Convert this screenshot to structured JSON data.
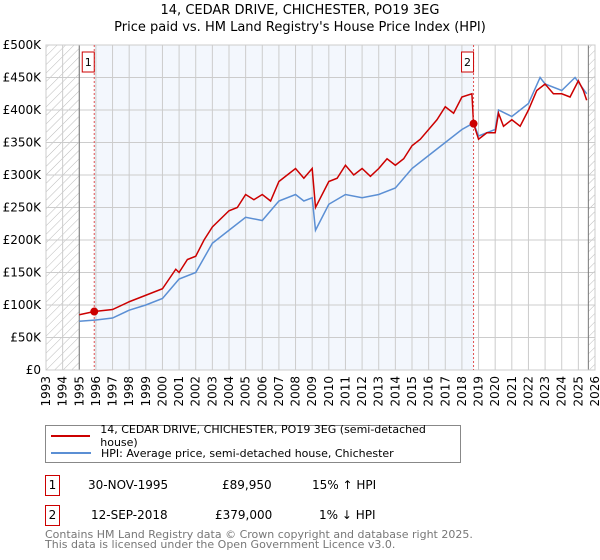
{
  "title": "14, CEDAR DRIVE, CHICHESTER, PO19 3EG",
  "subtitle": "Price paid vs. HM Land Registry's House Price Index (HPI)",
  "chart_data": {
    "type": "line",
    "title": "14, CEDAR DRIVE, CHICHESTER, PO19 3EG",
    "xlim": [
      1993,
      2026
    ],
    "ylim": [
      0,
      500000
    ],
    "yticks": [
      "£0",
      "£50K",
      "£100K",
      "£150K",
      "£200K",
      "£250K",
      "£300K",
      "£350K",
      "£400K",
      "£450K",
      "£500K"
    ],
    "xticks": [
      "1993",
      "1994",
      "1995",
      "1996",
      "1997",
      "1998",
      "1999",
      "2000",
      "2001",
      "2002",
      "2003",
      "2004",
      "2005",
      "2006",
      "2007",
      "2008",
      "2009",
      "2010",
      "2011",
      "2012",
      "2013",
      "2014",
      "2015",
      "2016",
      "2017",
      "2018",
      "2019",
      "2020",
      "2021",
      "2022",
      "2023",
      "2024",
      "2025",
      "2026"
    ],
    "series": [
      {
        "name": "14, CEDAR DRIVE, CHICHESTER, PO19 3EG (semi-detached house)",
        "color": "#cc0000",
        "x": [
          1995,
          1995.9,
          1997,
          1998,
          1999,
          2000,
          2000.8,
          2001,
          2001.5,
          2002,
          2002.5,
          2003,
          2004,
          2004.5,
          2005,
          2005.5,
          2006,
          2006.5,
          2007,
          2007.5,
          2008,
          2008.5,
          2009,
          2009.2,
          2010,
          2010.5,
          2011,
          2011.5,
          2012,
          2012.5,
          2013,
          2013.5,
          2014,
          2014.5,
          2015,
          2015.5,
          2016,
          2016.5,
          2017,
          2017.5,
          2018,
          2018.6,
          2018.7,
          2019,
          2019.5,
          2020,
          2020.2,
          2020.5,
          2021,
          2021.5,
          2022,
          2022.5,
          2023,
          2023.5,
          2024,
          2024.5,
          2025,
          2025.3,
          2025.5
        ],
        "y": [
          85000,
          89950,
          93000,
          105000,
          115000,
          125000,
          155000,
          150000,
          170000,
          175000,
          200000,
          220000,
          245000,
          250000,
          270000,
          262000,
          270000,
          260000,
          290000,
          300000,
          310000,
          295000,
          310000,
          250000,
          290000,
          295000,
          315000,
          300000,
          310000,
          298000,
          310000,
          325000,
          315000,
          325000,
          345000,
          355000,
          370000,
          385000,
          405000,
          395000,
          420000,
          425000,
          379000,
          355000,
          365000,
          365000,
          395000,
          375000,
          385000,
          375000,
          400000,
          430000,
          440000,
          425000,
          425000,
          420000,
          445000,
          430000,
          415000
        ]
      },
      {
        "name": "HPI: Average price, semi-detached house, Chichester",
        "color": "#5b8fd4",
        "x": [
          1995,
          1996,
          1997,
          1998,
          1999,
          2000,
          2001,
          2002,
          2003,
          2004,
          2005,
          2006,
          2007,
          2008,
          2008.5,
          2009,
          2009.2,
          2010,
          2011,
          2012,
          2013,
          2014,
          2015,
          2016,
          2017,
          2018,
          2018.7,
          2019,
          2020,
          2020.2,
          2021,
          2022,
          2022.7,
          2023,
          2024,
          2024.8,
          2025.5
        ],
        "y": [
          75000,
          77000,
          80000,
          92000,
          100000,
          110000,
          140000,
          150000,
          195000,
          215000,
          235000,
          230000,
          260000,
          270000,
          260000,
          265000,
          215000,
          255000,
          270000,
          265000,
          270000,
          280000,
          310000,
          330000,
          350000,
          370000,
          380000,
          360000,
          370000,
          400000,
          390000,
          410000,
          450000,
          440000,
          430000,
          450000,
          425000
        ]
      }
    ],
    "annotations": [
      {
        "label": "1",
        "x": 1995.9,
        "y": 89950
      },
      {
        "label": "2",
        "x": 2018.7,
        "y": 379000
      }
    ]
  },
  "legend": [
    "14, CEDAR DRIVE, CHICHESTER, PO19 3EG (semi-detached house)",
    "HPI: Average price, semi-detached house, Chichester"
  ],
  "sales": [
    {
      "num": "1",
      "date": "30-NOV-1995",
      "price": "£89,950",
      "hpi": "15% ↑ HPI"
    },
    {
      "num": "2",
      "date": "12-SEP-2018",
      "price": "£379,000",
      "hpi": "1% ↓ HPI"
    }
  ],
  "footer": [
    "Contains HM Land Registry data © Crown copyright and database right 2025.",
    "This data is licensed under the Open Government Licence v3.0."
  ]
}
